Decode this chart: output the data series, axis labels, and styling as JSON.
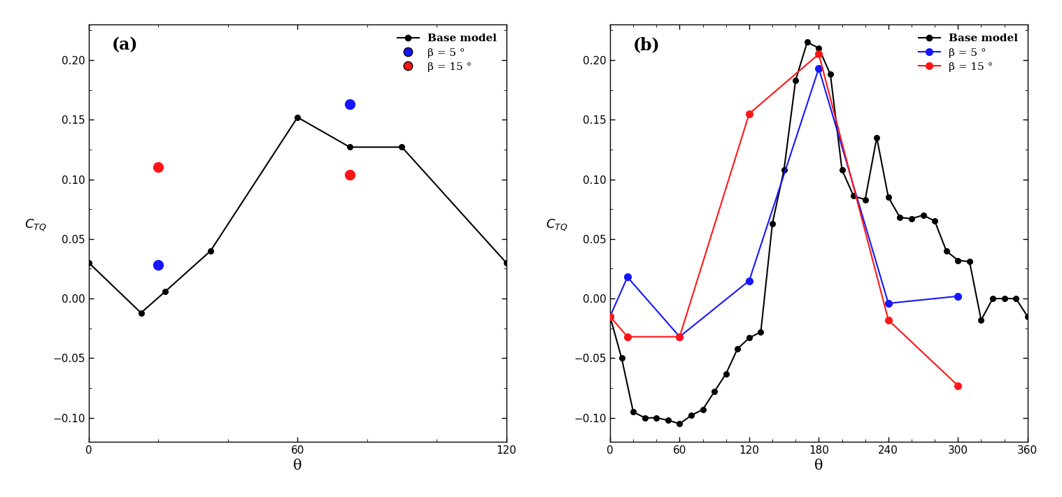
{
  "panel_a": {
    "base_x": [
      0,
      15,
      22,
      35,
      60,
      75,
      90,
      120
    ],
    "base_y": [
      0.03,
      -0.012,
      0.006,
      0.04,
      0.152,
      0.127,
      0.127,
      0.03
    ],
    "blue_x": [
      20,
      75
    ],
    "blue_y": [
      0.028,
      0.163
    ],
    "red_x": [
      20,
      75
    ],
    "red_y": [
      0.11,
      0.104
    ],
    "xlabel": "θ",
    "label": "(a)",
    "xlim": [
      0,
      120
    ],
    "ylim": [
      -0.12,
      0.23
    ],
    "xticks": [
      0,
      60,
      120
    ],
    "yticks": [
      -0.1,
      -0.05,
      0,
      0.05,
      0.1,
      0.15,
      0.2
    ],
    "blue_connected": false,
    "red_connected": false
  },
  "panel_b": {
    "base_x": [
      0,
      10,
      20,
      30,
      40,
      50,
      60,
      70,
      80,
      90,
      100,
      110,
      120,
      130,
      140,
      150,
      160,
      170,
      180,
      190,
      200,
      210,
      220,
      230,
      240,
      250,
      260,
      270,
      280,
      290,
      300,
      310,
      320,
      330,
      340,
      350,
      360
    ],
    "base_y": [
      -0.015,
      -0.05,
      -0.095,
      -0.1,
      -0.1,
      -0.102,
      -0.105,
      -0.098,
      -0.093,
      -0.078,
      -0.063,
      -0.042,
      -0.033,
      -0.028,
      0.063,
      0.108,
      0.183,
      0.215,
      0.21,
      0.188,
      0.108,
      0.086,
      0.083,
      0.135,
      0.085,
      0.068,
      0.067,
      0.07,
      0.065,
      0.04,
      0.032,
      0.031,
      -0.018,
      0.0,
      0.0,
      0.0,
      -0.015
    ],
    "blue_x": [
      0,
      15,
      60,
      120,
      180,
      240,
      300
    ],
    "blue_y": [
      -0.015,
      0.018,
      -0.032,
      0.015,
      0.193,
      -0.004,
      0.002
    ],
    "red_x": [
      0,
      15,
      60,
      120,
      180,
      240,
      300
    ],
    "red_y": [
      -0.015,
      -0.032,
      -0.032,
      0.155,
      0.205,
      -0.018,
      -0.073
    ],
    "xlabel": "θ",
    "label": "(b)",
    "xlim": [
      0,
      360
    ],
    "ylim": [
      -0.12,
      0.23
    ],
    "xticks": [
      0,
      60,
      120,
      180,
      240,
      300,
      360
    ],
    "yticks": [
      -0.1,
      -0.05,
      0,
      0.05,
      0.1,
      0.15,
      0.2
    ],
    "blue_connected": true,
    "red_connected": true
  },
  "legend_a": {
    "base_label": "Base model",
    "blue_label": "β = 5 °",
    "red_label": "β = 15 °",
    "blue_line": false,
    "red_line": false
  },
  "legend_b": {
    "base_label": "Base model",
    "blue_label": "β = 5 °",
    "red_label": "β = 15 °",
    "blue_line": true,
    "red_line": true
  },
  "colors": {
    "black": "#000000",
    "blue": "#1515FF",
    "red": "#FF1515"
  }
}
